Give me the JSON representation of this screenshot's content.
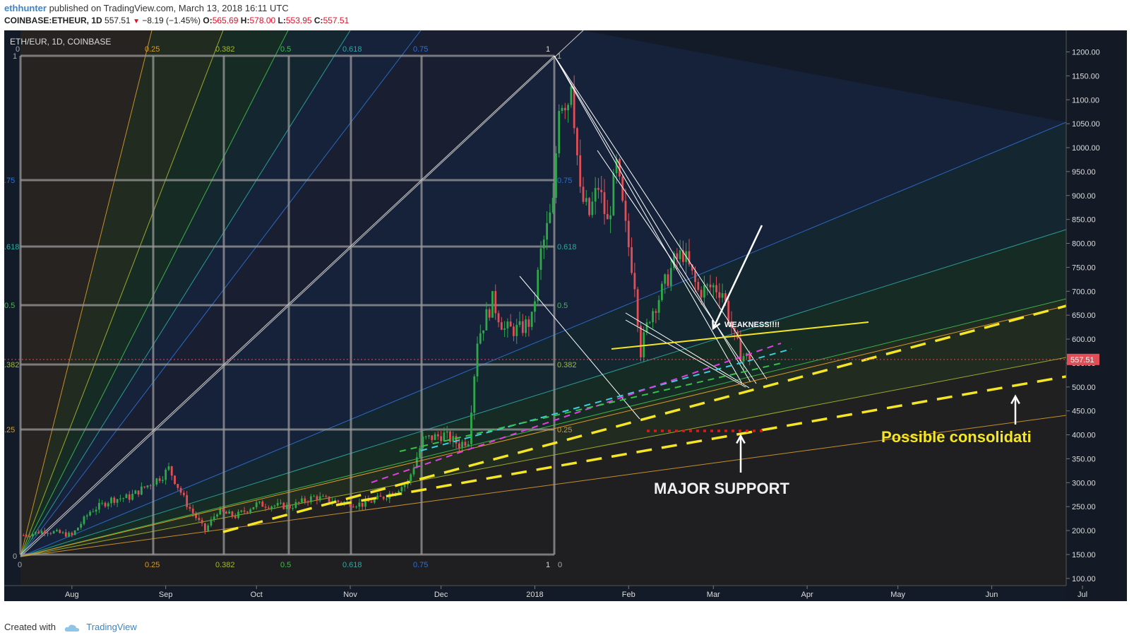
{
  "header": {
    "user": "ethhunter",
    "published": "published on TradingView.com, March 13, 2018 16:11 UTC",
    "symbol": "COINBASE:ETHEUR, 1D",
    "last": "557.51",
    "change": "−8.19 (−1.45%)",
    "o_label": "O:",
    "o": "565.69",
    "h_label": "H:",
    "h": "578.00",
    "l_label": "L:",
    "l": "553.95",
    "c_label": "C:",
    "c": "557.51"
  },
  "footer": {
    "created": "Created with",
    "brand": "TradingView"
  },
  "colors": {
    "chart_bg": "#141b28",
    "up": "#2ea84a",
    "down": "#e04e57",
    "yellow": "#f5e625",
    "white": "#ffffff",
    "grid_box": "#9a9a9a",
    "cyan": "#3ad0e0",
    "magenta": "#e040e0",
    "green_dash": "#38c048",
    "red_dots": "#e01818",
    "price_tag": "#e04e57"
  },
  "chart_data": {
    "type": "candlestick",
    "title": "ETH/EUR, 1D, COINBASE",
    "ylim": [
      85,
      1245
    ],
    "y_ticks": [
      "100.00",
      "150.00",
      "200.00",
      "250.00",
      "300.00",
      "350.00",
      "400.00",
      "450.00",
      "500.00",
      "550.00",
      "600.00",
      "650.00",
      "700.00",
      "750.00",
      "800.00",
      "850.00",
      "900.00",
      "950.00",
      "1000.00",
      "1050.00",
      "1100.00",
      "1150.00",
      "1200.00"
    ],
    "x_ticks": [
      "Aug",
      "Sep",
      "Oct",
      "Nov",
      "Dec",
      "2018",
      "Feb",
      "Mar",
      "Apr",
      "May",
      "Jun",
      "Jul"
    ],
    "last_price": "557.51",
    "close_series_approx": [
      {
        "date": "2017-07-16",
        "close": 190
      },
      {
        "date": "2017-07-23",
        "close": 200
      },
      {
        "date": "2017-08-01",
        "close": 190
      },
      {
        "date": "2017-08-07",
        "close": 240
      },
      {
        "date": "2017-08-14",
        "close": 265
      },
      {
        "date": "2017-08-20",
        "close": 270
      },
      {
        "date": "2017-08-31",
        "close": 315
      },
      {
        "date": "2017-09-02",
        "close": 330
      },
      {
        "date": "2017-09-08",
        "close": 255
      },
      {
        "date": "2017-09-14",
        "close": 200
      },
      {
        "date": "2017-09-18",
        "close": 240
      },
      {
        "date": "2017-09-24",
        "close": 230
      },
      {
        "date": "2017-10-01",
        "close": 255
      },
      {
        "date": "2017-10-12",
        "close": 250
      },
      {
        "date": "2017-10-20",
        "close": 270
      },
      {
        "date": "2017-10-28",
        "close": 260
      },
      {
        "date": "2017-11-05",
        "close": 255
      },
      {
        "date": "2017-11-12",
        "close": 270
      },
      {
        "date": "2017-11-20",
        "close": 300
      },
      {
        "date": "2017-11-25",
        "close": 390
      },
      {
        "date": "2017-12-02",
        "close": 400
      },
      {
        "date": "2017-12-07",
        "close": 380
      },
      {
        "date": "2017-12-10",
        "close": 390
      },
      {
        "date": "2017-12-13",
        "close": 600
      },
      {
        "date": "2017-12-18",
        "close": 680
      },
      {
        "date": "2017-12-22",
        "close": 620
      },
      {
        "date": "2017-12-27",
        "close": 620
      },
      {
        "date": "2017-12-31",
        "close": 640
      },
      {
        "date": "2018-01-03",
        "close": 780
      },
      {
        "date": "2018-01-07",
        "close": 880
      },
      {
        "date": "2018-01-09",
        "close": 1100
      },
      {
        "date": "2018-01-12",
        "close": 1100
      },
      {
        "date": "2018-01-13",
        "close": 1150
      },
      {
        "date": "2018-01-16",
        "close": 900
      },
      {
        "date": "2018-01-19",
        "close": 860
      },
      {
        "date": "2018-01-22",
        "close": 920
      },
      {
        "date": "2018-01-25",
        "close": 840
      },
      {
        "date": "2018-01-28",
        "close": 960
      },
      {
        "date": "2018-01-31",
        "close": 830
      },
      {
        "date": "2018-02-03",
        "close": 720
      },
      {
        "date": "2018-02-05",
        "close": 575
      },
      {
        "date": "2018-02-08",
        "close": 650
      },
      {
        "date": "2018-02-12",
        "close": 700
      },
      {
        "date": "2018-02-16",
        "close": 760
      },
      {
        "date": "2018-02-19",
        "close": 780
      },
      {
        "date": "2018-02-24",
        "close": 700
      },
      {
        "date": "2018-03-01",
        "close": 710
      },
      {
        "date": "2018-03-04",
        "close": 700
      },
      {
        "date": "2018-03-08",
        "close": 600
      },
      {
        "date": "2018-03-10",
        "close": 570
      },
      {
        "date": "2018-03-13",
        "close": 557.51
      }
    ],
    "gann_box_levels_top": [
      "0",
      "0.25",
      "0.382",
      "0.5",
      "0.618",
      "0.75",
      "1"
    ],
    "gann_box_levels_bottom": [
      "0",
      "0.25",
      "0.382",
      "0.5",
      "0.618",
      "0.75",
      "1",
      "0"
    ],
    "gann_box_levels_left": [
      "1",
      ".75",
      ".618",
      "0.5",
      ".382",
      ".25",
      "0"
    ],
    "gann_box_levels_inner": [
      "0.75",
      "0.618",
      "0.5",
      "0.382",
      "0.25"
    ],
    "annotations": {
      "weakness": "WEAKNESS!!!!",
      "major_support": "MAJOR SUPPORT",
      "consolidation": "Possible consolidati"
    },
    "grid": true
  }
}
